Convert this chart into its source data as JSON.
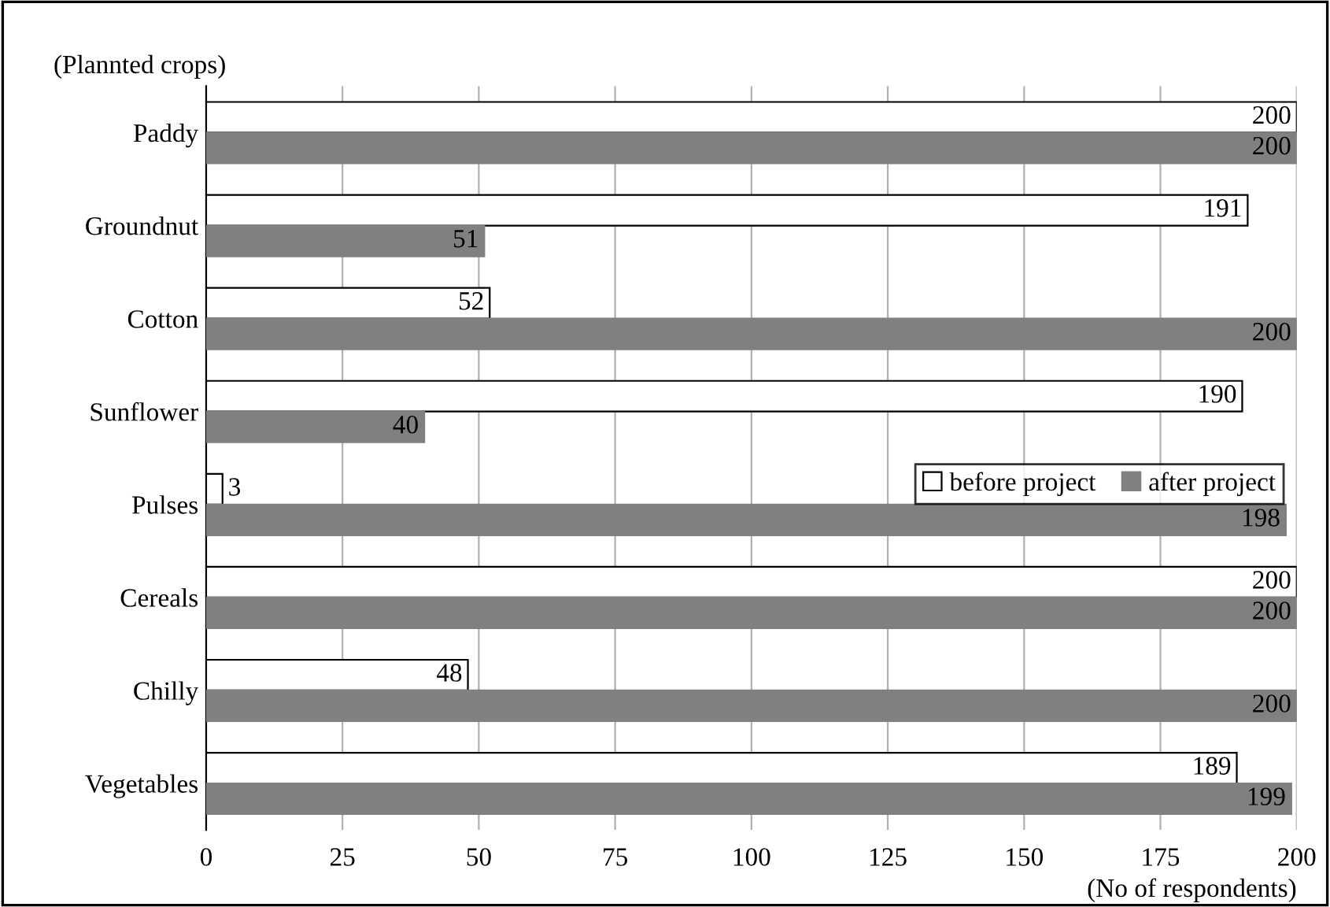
{
  "chart_data": {
    "type": "bar",
    "orientation": "horizontal",
    "xlabel": "(No of respondents)",
    "ylabel": "(Plannted crops)",
    "categories": [
      "Paddy",
      "Groundnut",
      "Cotton",
      "Sunflower",
      "Pulses",
      "Cereals",
      "Chilly",
      "Vegetables"
    ],
    "series": [
      {
        "name": "before project",
        "color": "#ffffff",
        "values": [
          200,
          191,
          52,
          190,
          3,
          200,
          48,
          189
        ]
      },
      {
        "name": "after project",
        "color": "#808080",
        "values": [
          200,
          51,
          200,
          40,
          198,
          200,
          200,
          199
        ]
      }
    ],
    "xlim": [
      0,
      200
    ],
    "xticks": [
      0,
      25,
      50,
      75,
      100,
      125,
      150,
      175,
      200
    ],
    "grid": "x",
    "legend": "right",
    "data_labels": true
  }
}
